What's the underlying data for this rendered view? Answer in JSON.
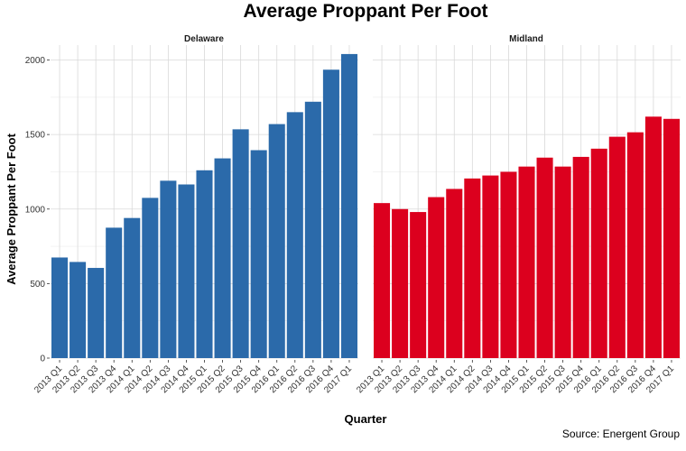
{
  "chart_data": {
    "type": "bar",
    "title": "Average Proppant Per Foot",
    "xlabel": "Quarter",
    "ylabel": "Average Proppant Per Foot",
    "ylim": [
      0,
      2100
    ],
    "yticks": [
      0,
      500,
      1000,
      1500,
      2000
    ],
    "categories": [
      "2013 Q1",
      "2013 Q2",
      "2013 Q3",
      "2013 Q4",
      "2014 Q1",
      "2014 Q2",
      "2014 Q3",
      "2014 Q4",
      "2015 Q1",
      "2015 Q2",
      "2015 Q3",
      "2015 Q4",
      "2016 Q1",
      "2016 Q2",
      "2016 Q3",
      "2016 Q4",
      "2017 Q1"
    ],
    "series": [
      {
        "name": "Delaware",
        "color": "#2b6aaa",
        "values": [
          675,
          645,
          605,
          875,
          940,
          1075,
          1190,
          1165,
          1260,
          1340,
          1535,
          1395,
          1570,
          1650,
          1720,
          1935,
          2040
        ]
      },
      {
        "name": "Midland",
        "color": "#dc001e",
        "values": [
          1040,
          1000,
          980,
          1080,
          1135,
          1205,
          1225,
          1250,
          1285,
          1345,
          1285,
          1350,
          1405,
          1485,
          1515,
          1620,
          1605
        ]
      }
    ],
    "source": "Source: Energent Group"
  }
}
